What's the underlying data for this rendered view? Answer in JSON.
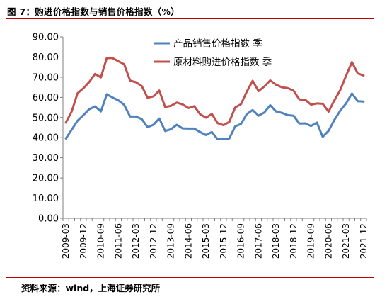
{
  "figure": {
    "title": "图 7：购进价格指数与销售价格指数（%）",
    "source": "资料来源：wind，上海证券研究所"
  },
  "colors": {
    "accent_rule": "#c00000"
  },
  "chart_data": {
    "type": "line",
    "title": "",
    "xlabel": "",
    "ylabel": "",
    "ylim": [
      0,
      90
    ],
    "yticks": [
      "0.00",
      "10.00",
      "20.00",
      "30.00",
      "40.00",
      "50.00",
      "60.00",
      "70.00",
      "80.00",
      "90.00"
    ],
    "grid": false,
    "legend": "top-center",
    "x": [
      "2009-03",
      "2009-06",
      "2009-09",
      "2009-12",
      "2010-03",
      "2010-06",
      "2010-09",
      "2010-12",
      "2011-03",
      "2011-06",
      "2011-09",
      "2011-12",
      "2012-03",
      "2012-06",
      "2012-09",
      "2012-12",
      "2013-03",
      "2013-06",
      "2013-09",
      "2013-12",
      "2014-03",
      "2014-06",
      "2014-09",
      "2014-12",
      "2015-03",
      "2015-06",
      "2015-09",
      "2015-12",
      "2016-03",
      "2016-06",
      "2016-09",
      "2016-12",
      "2017-03",
      "2017-06",
      "2017-09",
      "2017-12",
      "2018-03",
      "2018-06",
      "2018-09",
      "2018-12",
      "2019-03",
      "2019-06",
      "2019-09",
      "2019-12",
      "2020-03",
      "2020-06",
      "2020-09",
      "2020-12",
      "2021-03",
      "2021-06",
      "2021-09",
      "2021-12"
    ],
    "xtick_labels": [
      "2009-03",
      "2009-12",
      "2010-09",
      "2011-06",
      "2012-03",
      "2012-12",
      "2013-09",
      "2014-06",
      "2015-03",
      "2015-12",
      "2016-09",
      "2017-06",
      "2018-03",
      "2018-12",
      "2019-09",
      "2020-06",
      "2021-03",
      "2021-12"
    ],
    "series": [
      {
        "name": "产品销售价格指数 季",
        "color": "#4f81bd",
        "values": [
          39.6,
          44.0,
          48.4,
          51.2,
          54.1,
          55.5,
          53.0,
          61.5,
          59.9,
          58.5,
          56.2,
          50.5,
          50.5,
          49.2,
          45.2,
          46.4,
          49.5,
          43.3,
          44.2,
          46.4,
          44.6,
          44.5,
          44.5,
          42.8,
          41.3,
          42.8,
          39.2,
          39.3,
          39.6,
          45.6,
          46.8,
          51.7,
          53.7,
          50.9,
          52.5,
          56.1,
          53.0,
          52.3,
          51.2,
          50.9,
          47.0,
          47.1,
          45.8,
          47.5,
          40.4,
          43.4,
          48.8,
          53.4,
          57.0,
          61.9,
          58.1,
          57.9
        ]
      },
      {
        "name": "原材料购进价格指数 季",
        "color": "#c0504d",
        "values": [
          47.5,
          53.0,
          62.0,
          64.5,
          67.6,
          71.6,
          69.9,
          79.5,
          79.5,
          77.9,
          76.4,
          68.3,
          67.5,
          65.6,
          59.8,
          60.5,
          63.4,
          55.2,
          55.8,
          57.4,
          56.5,
          54.7,
          55.6,
          51.6,
          49.9,
          51.8,
          47.2,
          46.2,
          47.8,
          55.0,
          56.6,
          62.9,
          68.2,
          63.1,
          65.4,
          68.4,
          66.3,
          65.0,
          64.6,
          63.3,
          59.0,
          58.8,
          56.4,
          57.0,
          56.8,
          52.9,
          58.5,
          63.6,
          70.7,
          77.5,
          71.9,
          70.8
        ]
      }
    ]
  }
}
